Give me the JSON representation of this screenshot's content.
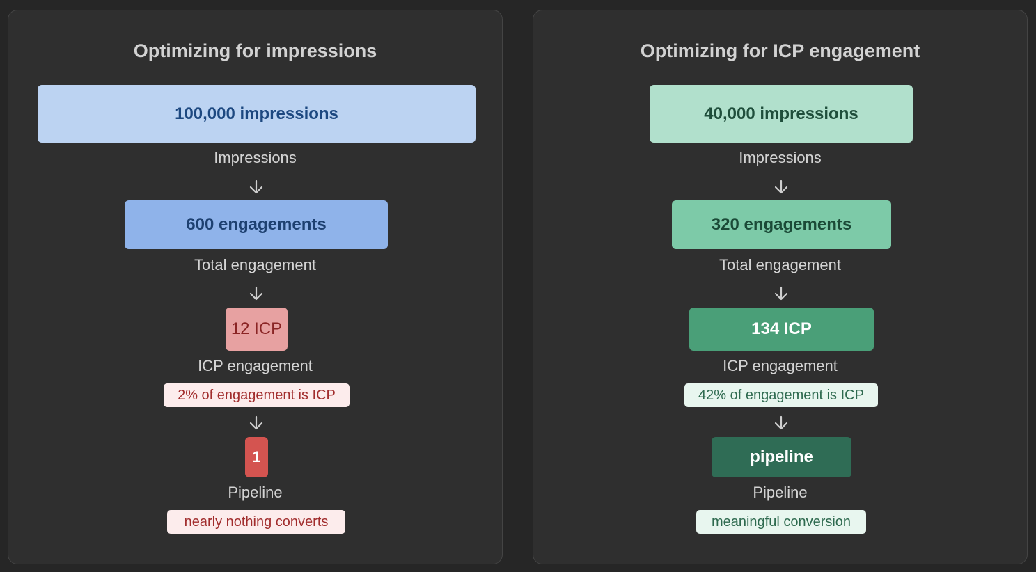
{
  "left": {
    "title": "Optimizing for impressions",
    "impressions_box": "100,000 impressions",
    "impressions_label": "Impressions",
    "engagement_box": "600 engagements",
    "engagement_label": "Total engagement",
    "icp_box": "12 ICP",
    "icp_label": "ICP engagement",
    "icp_note": "2% of engagement is ICP",
    "pipeline_box": "1",
    "pipeline_label": "Pipeline",
    "pipeline_note": "nearly nothing converts",
    "colors": {
      "impressions": "#bcd3f2",
      "engagement": "#8fb3ea",
      "icp": "#e7a1a1",
      "pipeline": "#d45450",
      "note_bg": "#fcecec",
      "note_text": "#a12d2d"
    }
  },
  "right": {
    "title": "Optimizing for ICP engagement",
    "impressions_box": "40,000 impressions",
    "impressions_label": "Impressions",
    "engagement_box": "320 engagements",
    "engagement_label": "Total engagement",
    "icp_box": "134 ICP",
    "icp_label": "ICP engagement",
    "icp_note": "42% of engagement is ICP",
    "pipeline_box": "pipeline",
    "pipeline_label": "Pipeline",
    "pipeline_note": "meaningful conversion",
    "colors": {
      "impressions": "#b1e0cc",
      "engagement": "#7dcaa8",
      "icp": "#4a9f78",
      "pipeline": "#2f6c55",
      "note_bg": "#e8f6ef",
      "note_text": "#2e6a4f"
    }
  }
}
